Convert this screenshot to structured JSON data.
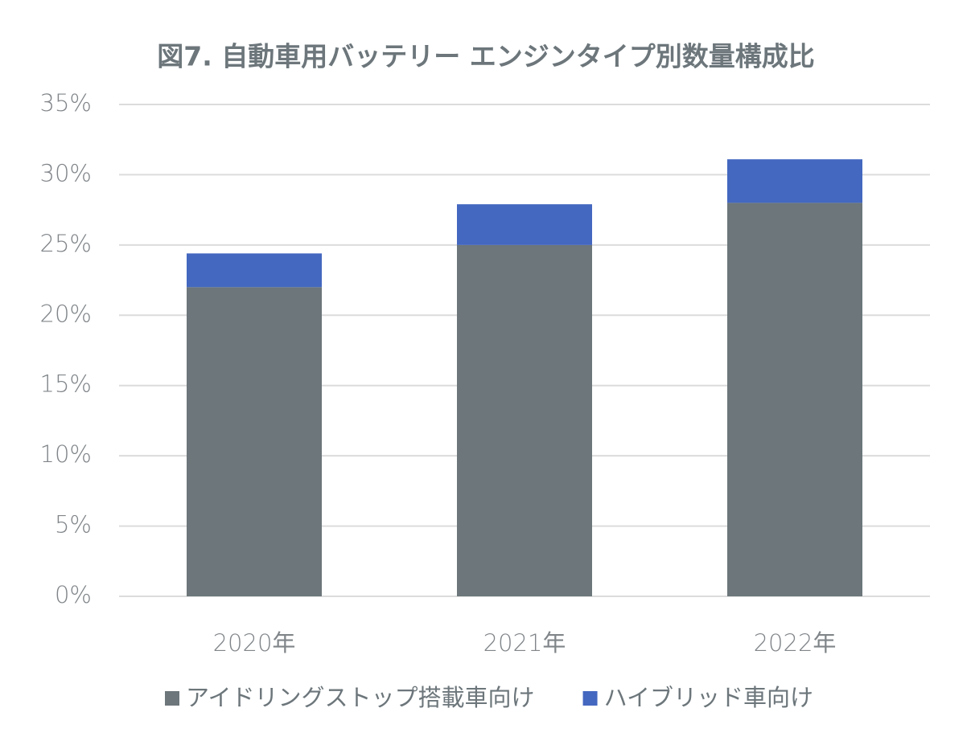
{
  "chart_data": {
    "type": "stacked-bar",
    "title": "図7. 自動車用バッテリー エンジンタイプ別数量構成比",
    "categories": [
      "2020年",
      "2021年",
      "2022年"
    ],
    "series": [
      {
        "name": "アイドリングストップ搭載車向け",
        "color": "#6c767b",
        "values": [
          22,
          25,
          28
        ]
      },
      {
        "name": "ハイブリッド車向け",
        "color": "#4468c0",
        "values": [
          2.4,
          2.9,
          3.1
        ]
      }
    ],
    "ylim": [
      0,
      35
    ],
    "yticks": [
      {
        "value": 0,
        "label": "0%"
      },
      {
        "value": 5,
        "label": "5%"
      },
      {
        "value": 10,
        "label": "10%"
      },
      {
        "value": 15,
        "label": "15%"
      },
      {
        "value": 20,
        "label": "20%"
      },
      {
        "value": 25,
        "label": "25%"
      },
      {
        "value": 30,
        "label": "30%"
      },
      {
        "value": 35,
        "label": "35%"
      }
    ],
    "grid": true,
    "legend": "bottom"
  }
}
